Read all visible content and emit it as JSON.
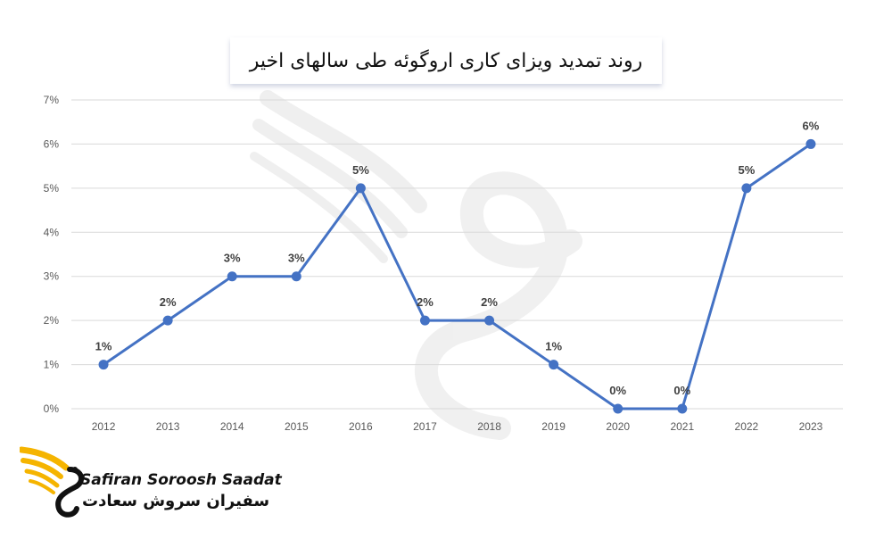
{
  "chart_data": {
    "type": "line",
    "title": "روند تمدید ویزای کاری اروگوئه طی سالهای اخیر",
    "xlabel": "",
    "ylabel": "",
    "categories": [
      "2012",
      "2013",
      "2014",
      "2015",
      "2016",
      "2017",
      "2018",
      "2019",
      "2020",
      "2021",
      "2022",
      "2023"
    ],
    "values": [
      1,
      2,
      3,
      3,
      5,
      2,
      2,
      1,
      0,
      0,
      5,
      6
    ],
    "data_labels": [
      "1%",
      "2%",
      "3%",
      "3%",
      "5%",
      "2%",
      "2%",
      "1%",
      "0%",
      "0%",
      "5%",
      "6%"
    ],
    "yticks": [
      "0%",
      "1%",
      "2%",
      "3%",
      "4%",
      "5%",
      "6%",
      "7%"
    ],
    "ylim": [
      0,
      7
    ],
    "grid": true,
    "legend": "none",
    "colors": {
      "line": "#4472C4",
      "marker": "#4472C4",
      "grid": "#d9d9d9",
      "tick_text": "#595959",
      "label_text": "#404040"
    }
  },
  "branding": {
    "name_en": "Safiran Soroosh Saadat",
    "name_fa": "سفیران سروش سعادت",
    "logo_icon": "wing-swan-icon",
    "logo_colors": [
      "#F5B400",
      "#111111"
    ]
  }
}
